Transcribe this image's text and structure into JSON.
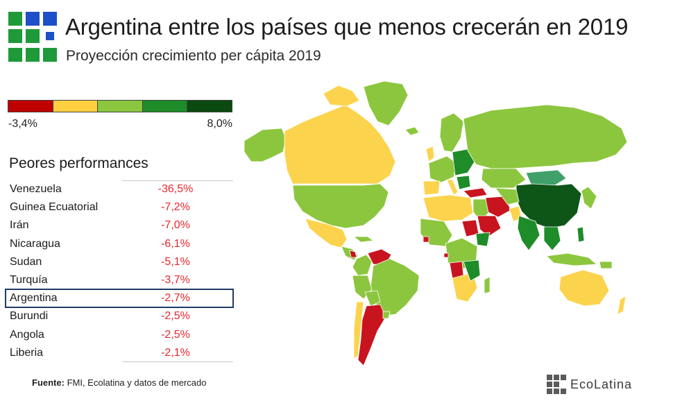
{
  "header": {
    "title": "Argentina entre los países que menos crecerán en 2019",
    "subtitle": "Proyección crecimiento per cápita 2019"
  },
  "legend_scale": {
    "min_label": "-3,4%",
    "max_label": "8,0%",
    "colors": [
      "#c00000",
      "#ffd040",
      "#8cc63e",
      "#1e8c28",
      "#0a4a10"
    ]
  },
  "performance": {
    "heading": "Peores performances",
    "rows": [
      {
        "country": "Venezuela",
        "value": "-36,5%"
      },
      {
        "country": "Guinea Ecuatorial",
        "value": "-7,2%"
      },
      {
        "country": "Irán",
        "value": "-7,0%"
      },
      {
        "country": "Nicaragua",
        "value": "-6,1%"
      },
      {
        "country": "Sudan",
        "value": "-5,1%"
      },
      {
        "country": "Turquía",
        "value": "-3,7%"
      },
      {
        "country": "Argentina",
        "value": "-2,7%",
        "highlighted": true
      },
      {
        "country": "Burundi",
        "value": "-2,5%"
      },
      {
        "country": "Angola",
        "value": "-2,5%"
      },
      {
        "country": "Liberia",
        "value": "-2,1%"
      }
    ]
  },
  "source": {
    "label": "Fuente:",
    "text": "FMI, Ecolatina y datos de mercado"
  },
  "brand": {
    "name": "EcoLatina",
    "icon": "grid-logo-icon"
  },
  "logo": {
    "icon": "grid-logo-icon",
    "colors": {
      "blue": "#1f4fc8",
      "green": "#1e9a3a"
    }
  },
  "map": {
    "colors": {
      "red": "#c8141e",
      "yellow": "#fcd34d",
      "light_green": "#8cc63e",
      "green": "#1e8c28",
      "dark_green": "#0e5518",
      "teal": "#3fa06a",
      "ocean": "#ffffff",
      "border": "#ffffff"
    }
  }
}
